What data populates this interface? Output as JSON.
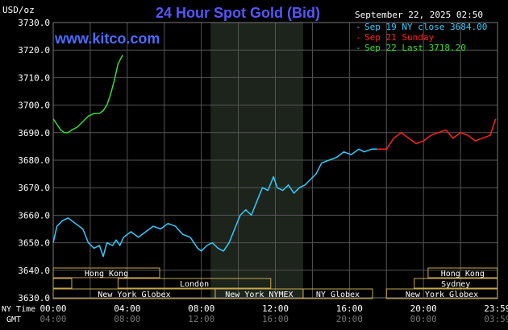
{
  "header": {
    "unit": "USD/oz",
    "title": "24 Hour Spot Gold (Bid)",
    "site": "www.kitco.com",
    "datetime": "September 22, 2025 02:50"
  },
  "legend": [
    {
      "label": "Sep 19 NY close 3684.00",
      "color": "#33ccff"
    },
    {
      "label": "Sep 21 Sunday",
      "color": "#ff2222"
    },
    {
      "label": "Sep 22 Last 3718.20",
      "color": "#33dd33"
    }
  ],
  "x_axis": {
    "row1_label": "NY Time",
    "row2_label": "GMT",
    "ny_ticks": [
      "00:00",
      "04:00",
      "08:00",
      "12:00",
      "16:00",
      "20:00",
      "23:59"
    ],
    "gmt_ticks": [
      "04:00",
      "08:00",
      "12:00",
      "16:00",
      "20:00",
      "00:00",
      "03:59"
    ]
  },
  "sessions": [
    {
      "label": "Hong Kong",
      "start": 0,
      "end": 5.75,
      "row": 0
    },
    {
      "label": "",
      "start": 0,
      "end": 1,
      "row": 1
    },
    {
      "label": "London",
      "start": 3.5,
      "end": 11.75,
      "row": 1
    },
    {
      "label": "New York Globex",
      "start": 0,
      "end": 8.75,
      "row": 2
    },
    {
      "label": "New York NYMEX",
      "start": 8.75,
      "end": 13.5,
      "row": 2
    },
    {
      "label": "NY Globex",
      "start": 13.5,
      "end": 17.25,
      "row": 2
    },
    {
      "label": "Hong Kong",
      "start": 20.25,
      "end": 23.99,
      "row": 0
    },
    {
      "label": "Sydney",
      "start": 19.5,
      "end": 23.99,
      "row": 1
    },
    {
      "label": "New York Globex",
      "start": 18.0,
      "end": 23.99,
      "row": 2
    }
  ],
  "chart_data": {
    "type": "line",
    "ylim": [
      3630,
      3730
    ],
    "xlim": [
      0,
      24
    ],
    "yticks": [
      3630.0,
      3640.0,
      3650.0,
      3660.0,
      3670.0,
      3680.0,
      3690.0,
      3700.0,
      3710.0,
      3720.0,
      3730.0
    ],
    "ytick_labels": [
      "3630.0",
      "3640.0",
      "3650.0",
      "3660.0",
      "3670.0",
      "3680.0",
      "3690.0",
      "3700.0",
      "3710.0",
      "3720.0",
      "3730.0"
    ],
    "x_unit": "hours after 00:00 NY time",
    "shaded_range": [
      8.5,
      13.5
    ],
    "grid": true,
    "series": [
      {
        "name": "Sep 19 NY close 3684.00",
        "color": "#33ccff",
        "x": [
          0.0,
          0.2,
          0.5,
          0.8,
          1.2,
          1.6,
          1.9,
          2.2,
          2.5,
          2.7,
          2.9,
          3.2,
          3.4,
          3.6,
          3.8,
          4.2,
          4.6,
          5.0,
          5.4,
          5.8,
          6.2,
          6.6,
          7.0,
          7.4,
          7.8,
          8.0,
          8.3,
          8.6,
          8.9,
          9.2,
          9.5,
          9.8,
          10.1,
          10.4,
          10.7,
          11.0,
          11.3,
          11.6,
          11.9,
          12.1,
          12.4,
          12.7,
          13.0,
          13.3,
          13.6,
          13.9,
          14.2,
          14.5,
          14.9,
          15.3,
          15.7,
          16.1,
          16.5,
          16.8,
          17.2,
          17.5
        ],
        "y": [
          3650,
          3656,
          3658,
          3659,
          3657,
          3655,
          3650,
          3648,
          3649,
          3645,
          3650,
          3649,
          3651,
          3649,
          3652,
          3654,
          3652,
          3654,
          3656,
          3655,
          3657,
          3656,
          3653,
          3652,
          3648,
          3647,
          3649,
          3650,
          3648,
          3647,
          3650,
          3655,
          3660,
          3662,
          3660,
          3665,
          3670,
          3669,
          3674,
          3670,
          3669,
          3671,
          3668,
          3670,
          3671,
          3673,
          3675,
          3679,
          3680,
          3681,
          3683,
          3682,
          3684,
          3683,
          3684,
          3684
        ]
      },
      {
        "name": "Sep 21 Sunday",
        "color": "#ff2222",
        "x": [
          17.5,
          18.0,
          18.4,
          18.8,
          19.2,
          19.6,
          20.0,
          20.4,
          20.8,
          21.2,
          21.6,
          22.0,
          22.4,
          22.8,
          23.2,
          23.6,
          23.9
        ],
        "y": [
          3684,
          3684,
          3688,
          3690,
          3688,
          3686,
          3687,
          3689,
          3690,
          3691,
          3688,
          3690,
          3689,
          3687,
          3688,
          3689,
          3695
        ]
      },
      {
        "name": "Sep 22 Last 3718.20",
        "color": "#33dd33",
        "x": [
          0.0,
          0.2,
          0.4,
          0.6,
          0.8,
          1.0,
          1.3,
          1.6,
          1.9,
          2.2,
          2.5,
          2.7,
          2.9,
          3.1,
          3.3,
          3.5,
          3.75
        ],
        "y": [
          3695,
          3693,
          3691,
          3690,
          3690,
          3691,
          3692,
          3694,
          3696,
          3697,
          3697,
          3698,
          3700,
          3704,
          3709,
          3715,
          3718.2
        ]
      }
    ]
  }
}
